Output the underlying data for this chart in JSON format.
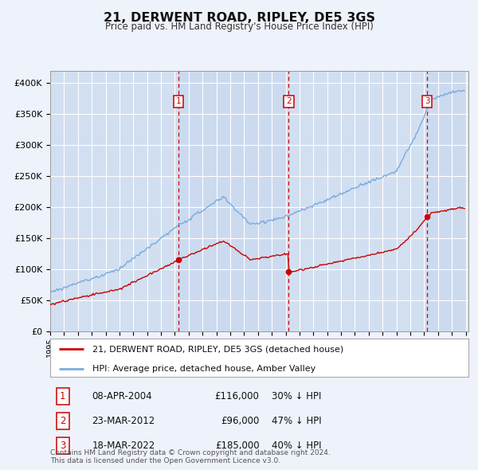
{
  "title": "21, DERWENT ROAD, RIPLEY, DE5 3GS",
  "subtitle": "Price paid vs. HM Land Registry's House Price Index (HPI)",
  "background_color": "#eef2fb",
  "plot_bg_color": "#dce8f5",
  "shade_color": "#c8d8ee",
  "ylim": [
    0,
    420000
  ],
  "yticks": [
    0,
    50000,
    100000,
    150000,
    200000,
    250000,
    300000,
    350000,
    400000
  ],
  "ytick_labels": [
    "£0",
    "£50K",
    "£100K",
    "£150K",
    "£200K",
    "£250K",
    "£300K",
    "£350K",
    "£400K"
  ],
  "transactions": [
    {
      "date": "08-APR-2004",
      "price": 116000,
      "label": "1",
      "hpi_diff": "30% ↓ HPI",
      "year": 2004.27
    },
    {
      "date": "23-MAR-2012",
      "price": 96000,
      "label": "2",
      "hpi_diff": "47% ↓ HPI",
      "year": 2012.22
    },
    {
      "date": "18-MAR-2022",
      "price": 185000,
      "label": "3",
      "hpi_diff": "40% ↓ HPI",
      "year": 2022.22
    }
  ],
  "legend_house_label": "21, DERWENT ROAD, RIPLEY, DE5 3GS (detached house)",
  "legend_hpi_label": "HPI: Average price, detached house, Amber Valley",
  "footer": "Contains HM Land Registry data © Crown copyright and database right 2024.\nThis data is licensed under the Open Government Licence v3.0.",
  "house_color": "#cc0000",
  "hpi_color": "#7aaadd",
  "vline_color": "#cc0000",
  "grid_color": "#ffffff",
  "start_year": 1995,
  "end_year": 2025
}
